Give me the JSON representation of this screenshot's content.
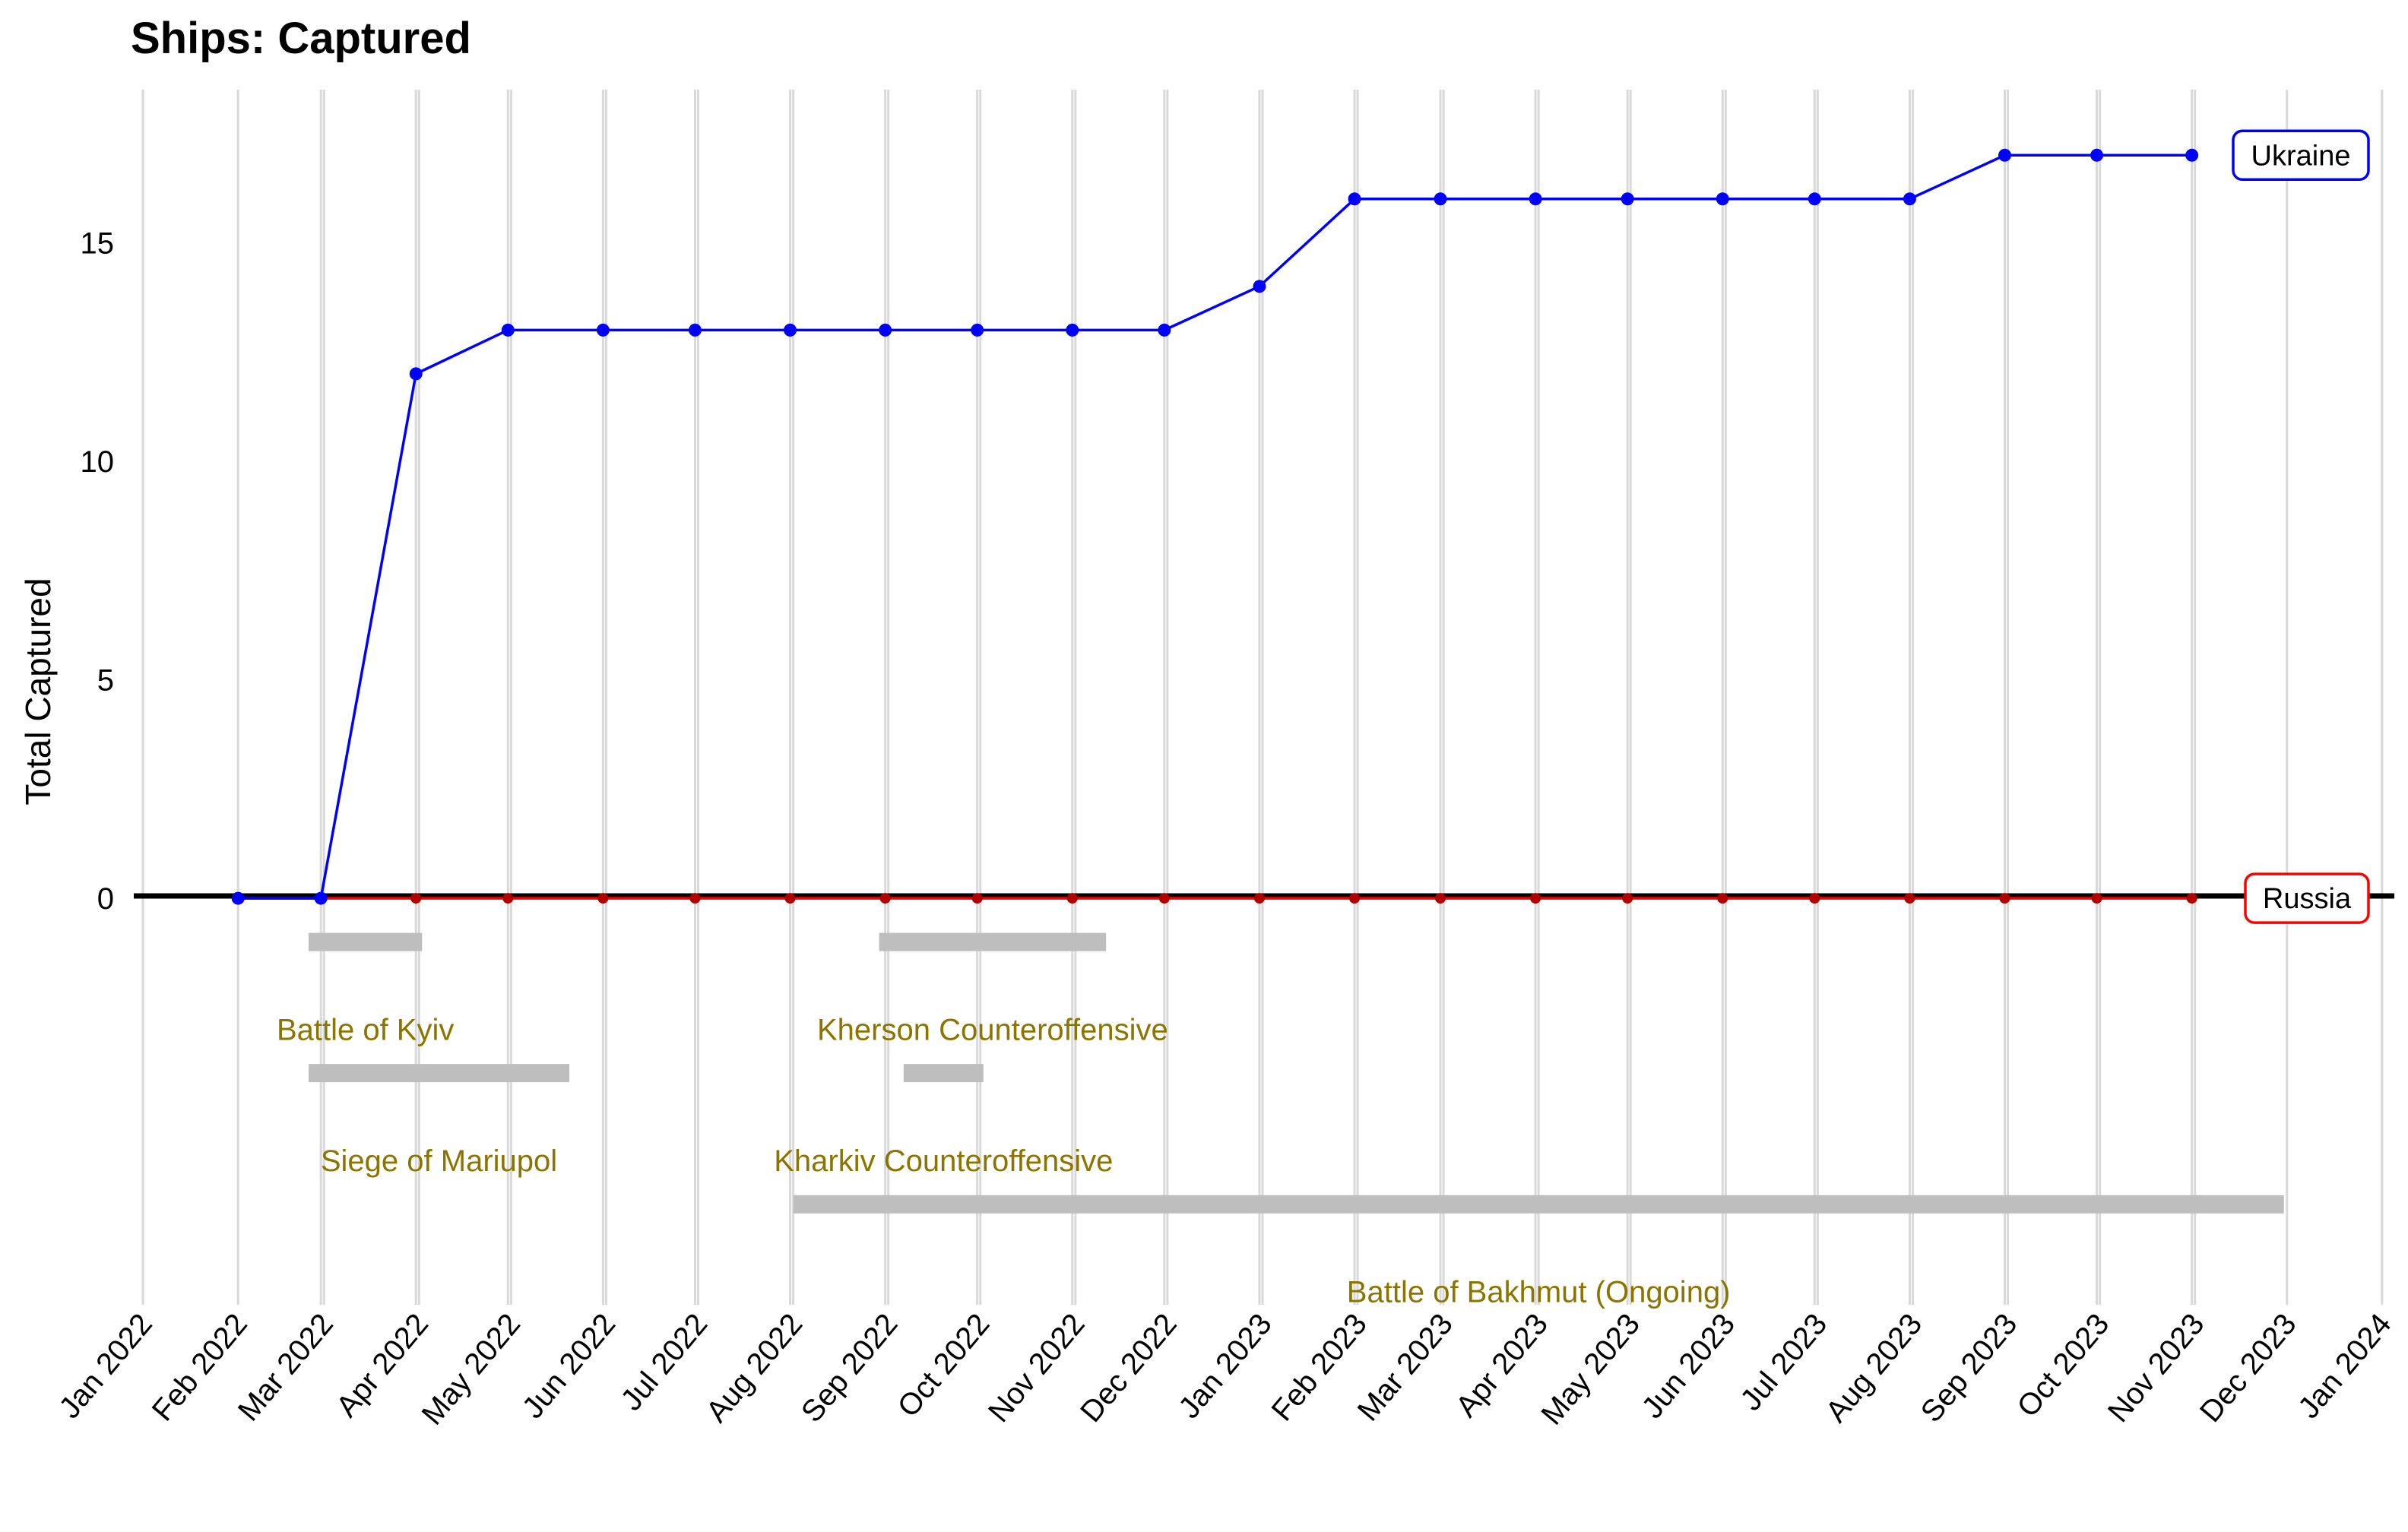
{
  "chart_data": {
    "type": "line",
    "title": "Ships: Captured",
    "xlabel": "",
    "ylabel": "Total Captured",
    "x_ticks": [
      "Jan 2022",
      "Feb 2022",
      "Mar 2022",
      "Apr 2022",
      "May 2022",
      "Jun 2022",
      "Jul 2022",
      "Aug 2022",
      "Sep 2022",
      "Oct 2022",
      "Nov 2022",
      "Dec 2022",
      "Jan 2023",
      "Feb 2023",
      "Mar 2023",
      "Apr 2023",
      "May 2023",
      "Jun 2023",
      "Jul 2023",
      "Aug 2023",
      "Sep 2023",
      "Oct 2023",
      "Nov 2023",
      "Dec 2023",
      "Jan 2024"
    ],
    "y_ticks": [
      0,
      5,
      10,
      15
    ],
    "xlim": [
      "2021-12-29",
      "2024-01-05"
    ],
    "ylim": [
      -9.3,
      18.5
    ],
    "grid": "vertical",
    "series": [
      {
        "name": "Ukraine",
        "color": "#0000ff",
        "x": [
          "2022-02-01",
          "2022-02-28",
          "2022-03-31",
          "2022-04-30",
          "2022-05-31",
          "2022-06-30",
          "2022-07-31",
          "2022-08-31",
          "2022-09-30",
          "2022-10-31",
          "2022-11-30",
          "2022-12-31",
          "2023-01-31",
          "2023-02-28",
          "2023-03-31",
          "2023-04-30",
          "2023-05-31",
          "2023-06-30",
          "2023-07-31",
          "2023-08-31",
          "2023-09-30",
          "2023-10-31"
        ],
        "values": [
          0,
          0,
          12,
          13,
          13,
          13,
          13,
          13,
          13,
          13,
          13,
          14,
          16,
          16,
          16,
          16,
          16,
          16,
          16,
          17,
          17,
          17
        ]
      },
      {
        "name": "Russia",
        "color": "#ff0000",
        "x": [
          "2022-02-01",
          "2022-02-28",
          "2022-03-31",
          "2022-04-30",
          "2022-05-31",
          "2022-06-30",
          "2022-07-31",
          "2022-08-31",
          "2022-09-30",
          "2022-10-31",
          "2022-11-30",
          "2022-12-31",
          "2023-01-31",
          "2023-02-28",
          "2023-03-31",
          "2023-04-30",
          "2023-05-31",
          "2023-06-30",
          "2023-07-31",
          "2023-08-31",
          "2023-09-30",
          "2023-10-31"
        ],
        "values": [
          0,
          0,
          0,
          0,
          0,
          0,
          0,
          0,
          0,
          0,
          0,
          0,
          0,
          0,
          0,
          0,
          0,
          0,
          0,
          0,
          0,
          0
        ]
      }
    ],
    "events": [
      {
        "label": "Battle of Kyiv",
        "start": "2022-02-24",
        "end": "2022-04-02",
        "level": -1
      },
      {
        "label": "Siege of Mariupol",
        "start": "2022-02-24",
        "end": "2022-05-20",
        "level": -4
      },
      {
        "label": "Kherson Counteroffensive",
        "start": "2022-08-29",
        "end": "2022-11-11",
        "level": -1
      },
      {
        "label": "Kharkiv Counteroffensive",
        "start": "2022-09-06",
        "end": "2022-10-02",
        "level": -4
      },
      {
        "label": "Battle of Bakhmut (Ongoing)",
        "start": "2022-08-01",
        "end": "2023-11-30",
        "level": -7
      }
    ],
    "event_label_color": "#8b7500",
    "event_bar_color": "#bebebe"
  }
}
